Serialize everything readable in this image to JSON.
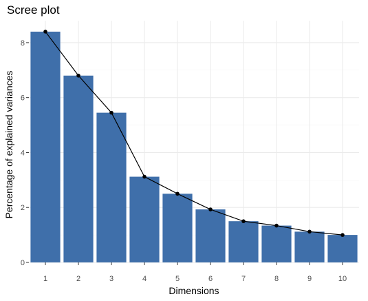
{
  "chart_data": {
    "type": "bar",
    "title": "Scree plot",
    "xlabel": "Dimensions",
    "ylabel": "Percentage of explained variances",
    "categories": [
      "1",
      "2",
      "3",
      "4",
      "5",
      "6",
      "7",
      "8",
      "9",
      "10"
    ],
    "values": [
      8.4,
      6.8,
      5.45,
      3.12,
      2.5,
      1.93,
      1.5,
      1.34,
      1.12,
      1.0
    ],
    "overlay": "line-with-points",
    "ylim": [
      0,
      8.8
    ],
    "yticks": [
      0,
      2,
      4,
      6,
      8
    ],
    "grid": true,
    "colors": {
      "bar": "#3F6FAA",
      "line": "#000000",
      "grid_major": "#EBEBEB",
      "grid_minor": "#F5F5F5"
    }
  }
}
